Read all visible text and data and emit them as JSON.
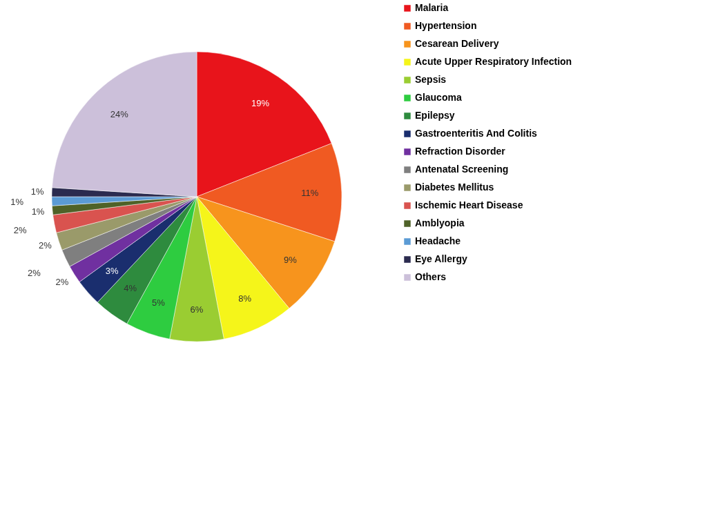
{
  "chart_data": {
    "type": "pie",
    "categories": [
      "Malaria",
      "Hypertension",
      "Cesarean Delivery",
      "Acute Upper Respiratory Infection",
      "Sepsis",
      "Glaucoma",
      "Epilepsy",
      "Gastroenteritis And Colitis",
      "Refraction Disorder",
      "Antenatal Screening",
      "Diabetes Mellitus",
      "Ischemic Heart Disease",
      "Amblyopia",
      "Headache",
      "Eye Allergy",
      "Others"
    ],
    "values": [
      19,
      11,
      9,
      8,
      6,
      5,
      4,
      3,
      2,
      2,
      2,
      2,
      1,
      1,
      1,
      24
    ],
    "value_labels": [
      "19%",
      "11%",
      "9%",
      "8%",
      "6%",
      "5%",
      "4%",
      "3%",
      "2%",
      "2%",
      "2%",
      "2%",
      "1%",
      "1%",
      "1%",
      "24%"
    ],
    "colors": [
      "#e8141b",
      "#f05a22",
      "#f7941d",
      "#f5f51a",
      "#9acd32",
      "#2ecc40",
      "#2e8b3e",
      "#1a2e6e",
      "#7030a0",
      "#7f7f7f",
      "#9a9a6a",
      "#d9534f",
      "#4f6228",
      "#5b9bd5",
      "#2b2b4f",
      "#ccc0da"
    ],
    "legend": "right"
  }
}
